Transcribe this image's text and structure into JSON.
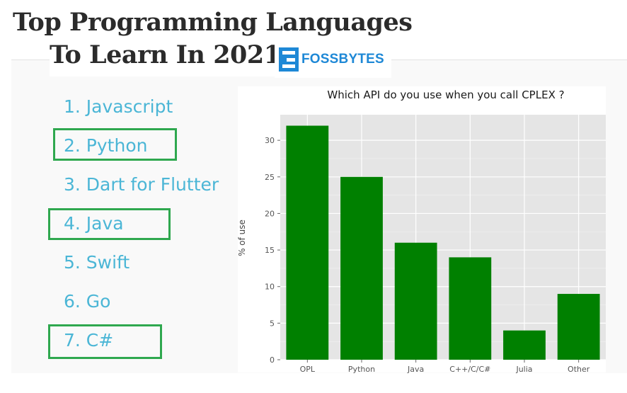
{
  "header": {
    "title_line1": "Top Programming Languages",
    "title_line2": "To Learn In 2021",
    "logo_text": "FOSSBYTES"
  },
  "languages": [
    {
      "label": "1. Javascript",
      "highlighted": false
    },
    {
      "label": "2. Python",
      "highlighted": true
    },
    {
      "label": "3. Dart for Flutter",
      "highlighted": false
    },
    {
      "label": "4. Java",
      "highlighted": true
    },
    {
      "label": "5. Swift",
      "highlighted": false
    },
    {
      "label": "6. Go",
      "highlighted": false
    },
    {
      "label": "7. C#",
      "highlighted": true
    }
  ],
  "colors": {
    "bar": "#008000",
    "plot_bg": "#e5e5e5",
    "list_text": "#4bb6d6",
    "highlight": "#2fa84f"
  },
  "chart_data": {
    "type": "bar",
    "title": "Which API do you use when you call CPLEX ?",
    "xlabel": "",
    "ylabel": "% of use",
    "categories": [
      "OPL",
      "Python",
      "Java",
      "C++/C/C#",
      "Julia",
      "Other"
    ],
    "values": [
      32,
      25,
      16,
      14,
      4,
      9
    ],
    "ylim": [
      0,
      33.5
    ],
    "yticks": [
      0,
      5,
      10,
      15,
      20,
      25,
      30
    ],
    "grid": true
  }
}
